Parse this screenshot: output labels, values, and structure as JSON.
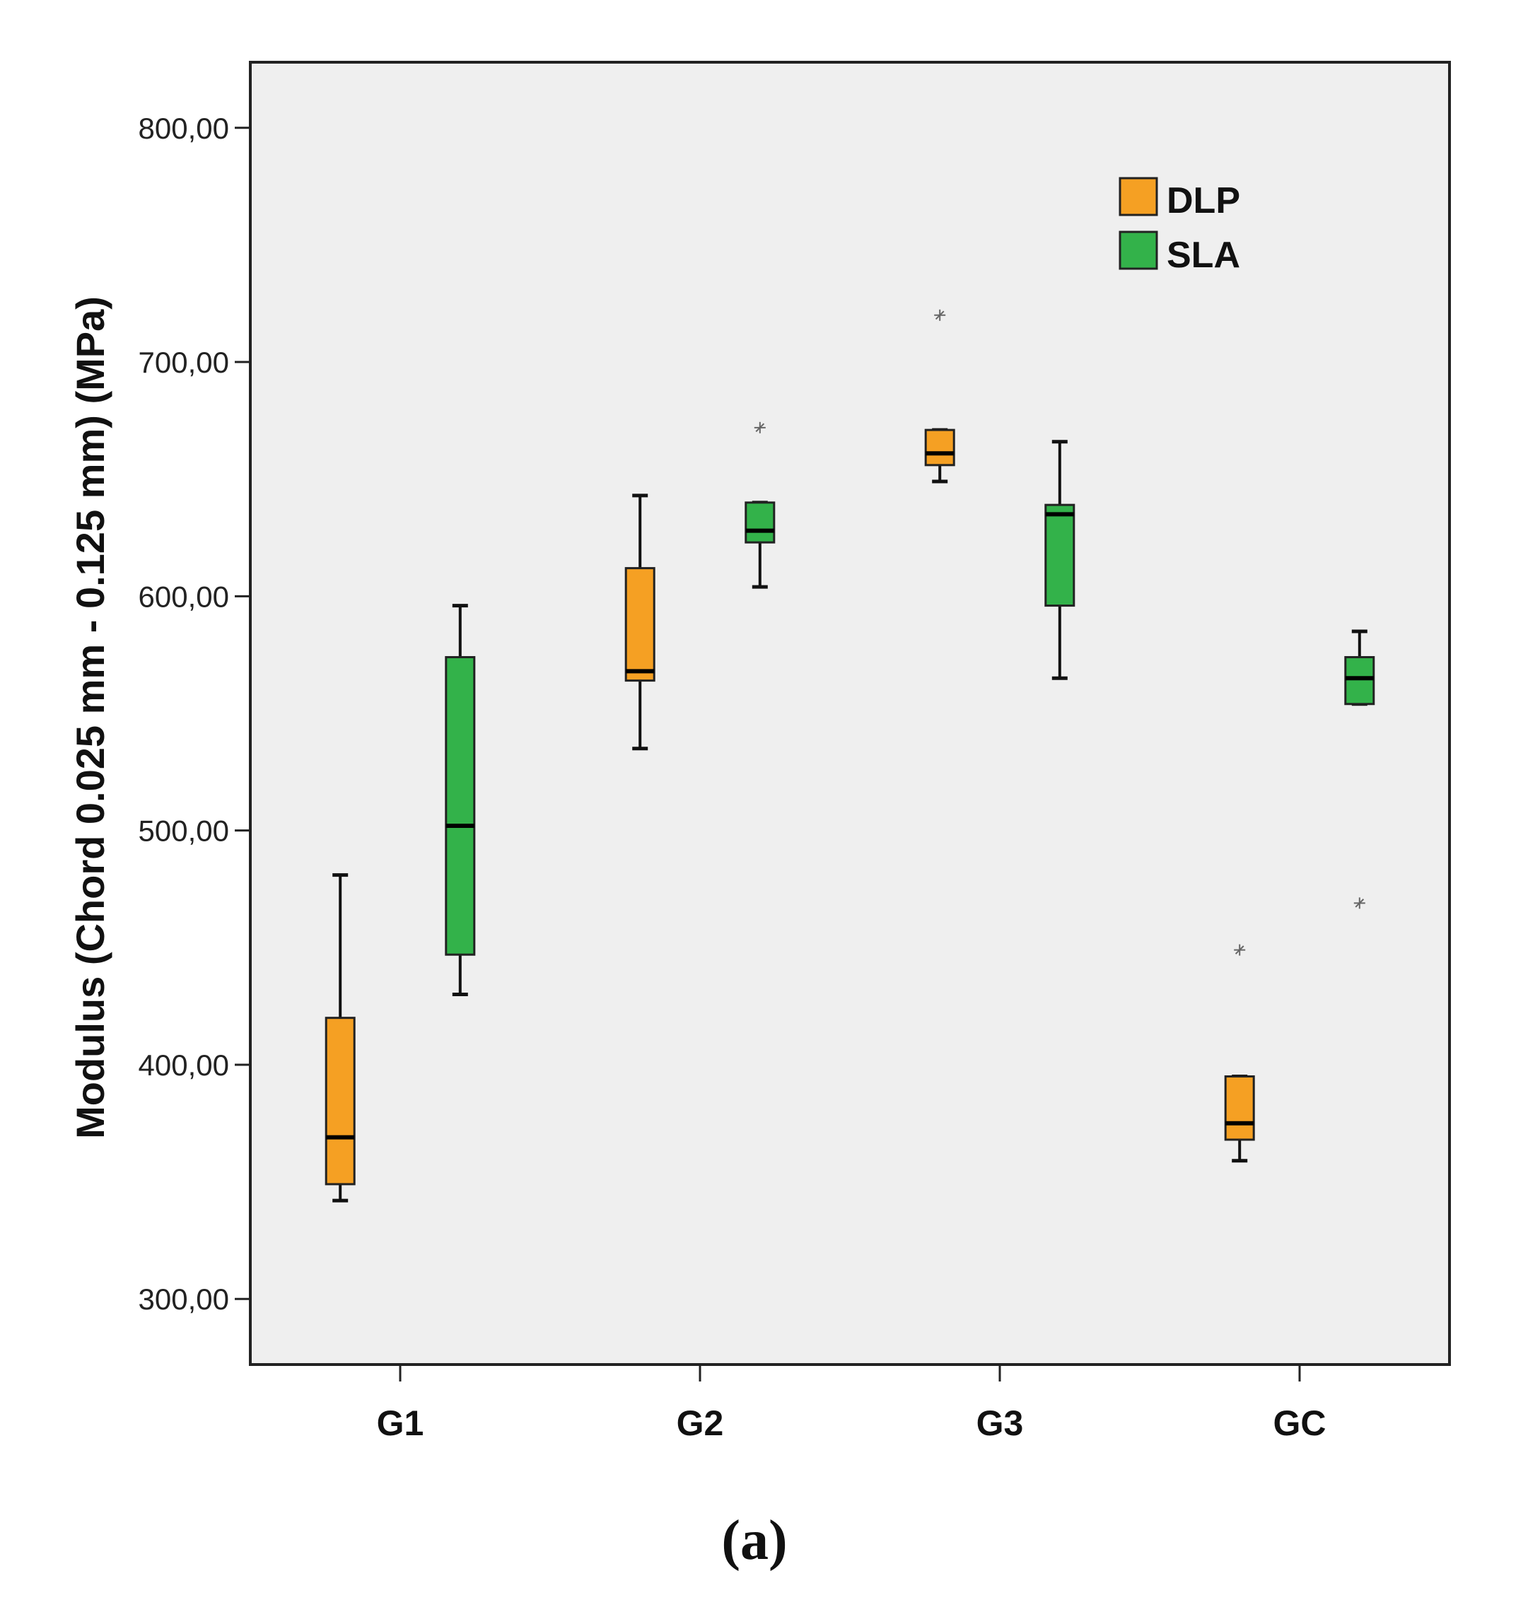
{
  "chart_data": {
    "type": "boxplot",
    "title": "",
    "xlabel": "",
    "ylabel": "Modulus (Chord 0.025 mm - 0.125 mm) (MPa)",
    "ylim": [
      272,
      828
    ],
    "yticks": [
      300,
      400,
      500,
      600,
      700,
      800
    ],
    "ytick_labels": [
      "300,00",
      "400,00",
      "500,00",
      "600,00",
      "700,00",
      "800,00"
    ],
    "categories": [
      "G1",
      "G2",
      "G3",
      "GC"
    ],
    "legend_position": "top-right",
    "series": [
      {
        "name": "DLP",
        "color": "#F5A023",
        "boxes": [
          {
            "min": 342,
            "q1": 349,
            "median": 369,
            "q3": 420,
            "max": 481,
            "outliers": []
          },
          {
            "min": 535,
            "q1": 564,
            "median": 568,
            "q3": 612,
            "max": 643,
            "outliers": []
          },
          {
            "min": 649,
            "q1": 656,
            "median": 661,
            "q3": 671,
            "max": 671,
            "outliers": [
              720
            ]
          },
          {
            "min": 359,
            "q1": 368,
            "median": 375,
            "q3": 395,
            "max": 395,
            "outliers": [
              449
            ]
          }
        ]
      },
      {
        "name": "SLA",
        "color": "#33B24A",
        "boxes": [
          {
            "min": 430,
            "q1": 447,
            "median": 502,
            "q3": 574,
            "max": 596,
            "outliers": []
          },
          {
            "min": 604,
            "q1": 623,
            "median": 628,
            "q3": 640,
            "max": 640,
            "outliers": [
              672
            ]
          },
          {
            "min": 565,
            "q1": 596,
            "median": 635,
            "q3": 639,
            "max": 666,
            "outliers": []
          },
          {
            "min": 554,
            "q1": 554,
            "median": 565,
            "q3": 574,
            "max": 585,
            "outliers": [
              469
            ]
          }
        ]
      }
    ]
  },
  "caption": "(a)"
}
